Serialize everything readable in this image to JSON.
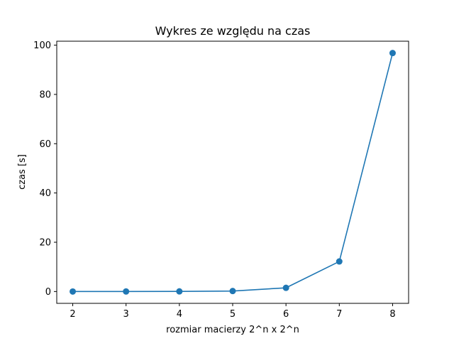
{
  "chart_data": {
    "type": "line",
    "title": "Wykres ze względu na czas",
    "xlabel": "rozmiar macierzy 2^n x 2^n",
    "ylabel": "czas [s]",
    "x": [
      2,
      3,
      4,
      5,
      6,
      7,
      8
    ],
    "series": [
      {
        "values": [
          0.0,
          0.02,
          0.05,
          0.2,
          1.5,
          12.2,
          96.8
        ],
        "color": "#1f77b4"
      }
    ],
    "xlim": [
      1.7,
      8.3
    ],
    "ylim": [
      -4.8,
      101.6
    ],
    "xticks": [
      2,
      3,
      4,
      5,
      6,
      7,
      8
    ],
    "yticks": [
      0,
      20,
      40,
      60,
      80,
      100
    ],
    "marker": "circle",
    "grid": false
  }
}
